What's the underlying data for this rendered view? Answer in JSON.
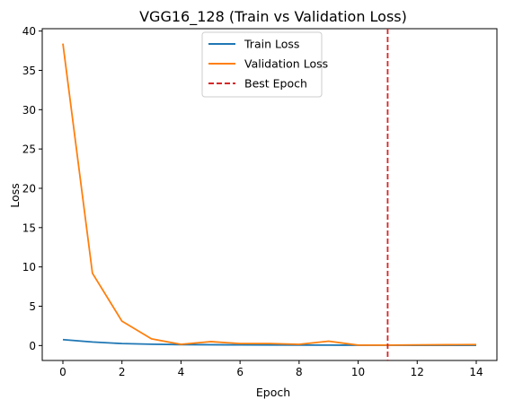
{
  "chart_data": {
    "type": "line",
    "title": "VGG16_128 (Train vs Validation Loss)",
    "xlabel": "Epoch",
    "ylabel": "Loss",
    "xlim": [
      -0.7,
      14.7
    ],
    "ylim": [
      -1.9,
      40.3
    ],
    "xticks": [
      0,
      2,
      4,
      6,
      8,
      10,
      12,
      14
    ],
    "yticks": [
      0,
      5,
      10,
      15,
      20,
      25,
      30,
      35,
      40
    ],
    "grid": false,
    "legend_position": "upper center",
    "x": [
      0,
      1,
      2,
      3,
      4,
      5,
      6,
      7,
      8,
      9,
      10,
      11,
      12,
      13,
      14
    ],
    "series": [
      {
        "name": "Train Loss",
        "color": "#1f77b4",
        "style": "solid",
        "values": [
          0.75,
          0.45,
          0.25,
          0.17,
          0.12,
          0.1,
          0.08,
          0.07,
          0.06,
          0.05,
          0.04,
          0.04,
          0.03,
          0.03,
          0.03
        ]
      },
      {
        "name": "Validation Loss",
        "color": "#ff7f0e",
        "style": "solid",
        "values": [
          38.4,
          9.2,
          3.1,
          0.85,
          0.15,
          0.5,
          0.25,
          0.25,
          0.15,
          0.55,
          0.05,
          0.05,
          0.08,
          0.1,
          0.12
        ]
      }
    ],
    "reference_lines": [
      {
        "name": "Best Epoch",
        "orientation": "vertical",
        "x": 11,
        "color": "#d62728",
        "style": "dashed"
      }
    ]
  }
}
